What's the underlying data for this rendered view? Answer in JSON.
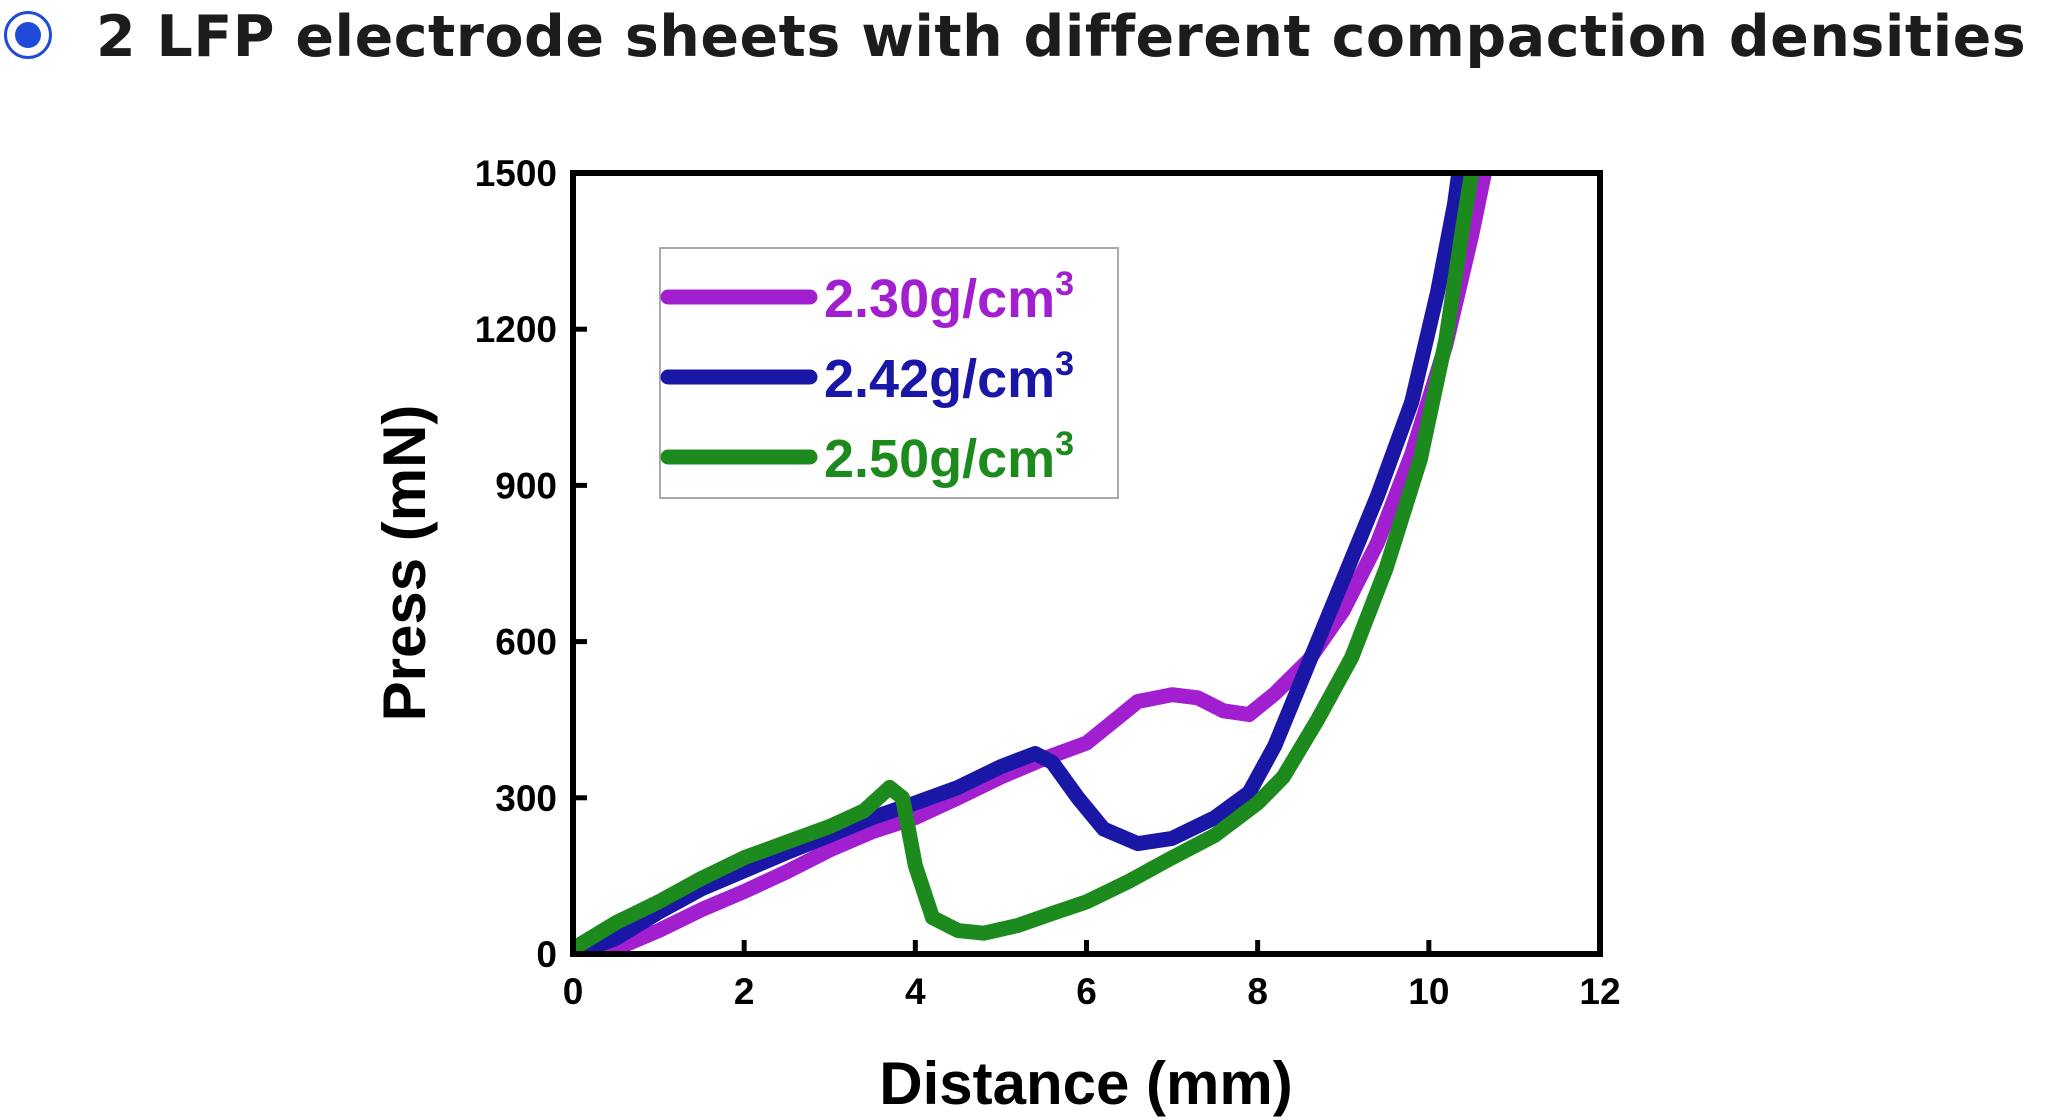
{
  "header": {
    "title": "2 LFP electrode sheets with different compaction densities",
    "bullet_icon": "radio-bullet-icon",
    "accent_color": "#1f4bd8"
  },
  "chart_data": {
    "type": "line",
    "xlabel": "Distance (mm)",
    "ylabel": "Press (mN)",
    "xlim": [
      0,
      12
    ],
    "ylim": [
      0,
      1500
    ],
    "xticks": [
      "0",
      "2",
      "4",
      "6",
      "8",
      "10",
      "12"
    ],
    "yticks": [
      "0",
      "300",
      "600",
      "900",
      "1200",
      "1500"
    ],
    "grid": false,
    "legend_position": "top-left",
    "series": [
      {
        "name": "2.30g/cm",
        "name_superscript": "3",
        "color": "#a21fd0",
        "points": [
          [
            0.0,
            0
          ],
          [
            0.5,
            10
          ],
          [
            1.0,
            45
          ],
          [
            1.5,
            85
          ],
          [
            2.0,
            120
          ],
          [
            2.5,
            158
          ],
          [
            3.0,
            200
          ],
          [
            3.5,
            235
          ],
          [
            4.0,
            262
          ],
          [
            4.5,
            300
          ],
          [
            5.0,
            340
          ],
          [
            5.5,
            375
          ],
          [
            6.0,
            405
          ],
          [
            6.3,
            445
          ],
          [
            6.6,
            485
          ],
          [
            7.0,
            498
          ],
          [
            7.3,
            492
          ],
          [
            7.6,
            467
          ],
          [
            7.9,
            460
          ],
          [
            8.2,
            500
          ],
          [
            8.6,
            565
          ],
          [
            9.0,
            660
          ],
          [
            9.4,
            790
          ],
          [
            9.8,
            960
          ],
          [
            10.2,
            1170
          ],
          [
            10.5,
            1380
          ],
          [
            10.65,
            1500
          ]
        ]
      },
      {
        "name": "2.42g/cm",
        "name_superscript": "3",
        "color": "#1a16a6",
        "points": [
          [
            0.0,
            0
          ],
          [
            0.5,
            30
          ],
          [
            1.0,
            80
          ],
          [
            1.5,
            125
          ],
          [
            2.0,
            160
          ],
          [
            2.5,
            195
          ],
          [
            3.0,
            228
          ],
          [
            3.5,
            262
          ],
          [
            4.0,
            290
          ],
          [
            4.5,
            320
          ],
          [
            5.0,
            360
          ],
          [
            5.4,
            385
          ],
          [
            5.6,
            368
          ],
          [
            5.9,
            300
          ],
          [
            6.2,
            240
          ],
          [
            6.6,
            212
          ],
          [
            7.0,
            222
          ],
          [
            7.5,
            262
          ],
          [
            7.9,
            310
          ],
          [
            8.2,
            400
          ],
          [
            8.6,
            560
          ],
          [
            9.0,
            720
          ],
          [
            9.4,
            880
          ],
          [
            9.8,
            1060
          ],
          [
            10.1,
            1270
          ],
          [
            10.3,
            1440
          ],
          [
            10.35,
            1500
          ]
        ]
      },
      {
        "name": "2.50g/cm",
        "name_superscript": "3",
        "color": "#1d8a1d",
        "points": [
          [
            0.0,
            10
          ],
          [
            0.5,
            60
          ],
          [
            1.0,
            100
          ],
          [
            1.5,
            145
          ],
          [
            2.0,
            185
          ],
          [
            2.5,
            215
          ],
          [
            3.0,
            245
          ],
          [
            3.4,
            275
          ],
          [
            3.7,
            320
          ],
          [
            3.85,
            300
          ],
          [
            4.0,
            170
          ],
          [
            4.2,
            70
          ],
          [
            4.5,
            45
          ],
          [
            4.8,
            40
          ],
          [
            5.2,
            55
          ],
          [
            5.6,
            78
          ],
          [
            6.0,
            100
          ],
          [
            6.5,
            140
          ],
          [
            7.0,
            185
          ],
          [
            7.5,
            228
          ],
          [
            8.0,
            290
          ],
          [
            8.3,
            340
          ],
          [
            8.7,
            450
          ],
          [
            9.1,
            570
          ],
          [
            9.5,
            740
          ],
          [
            9.9,
            950
          ],
          [
            10.2,
            1180
          ],
          [
            10.4,
            1400
          ],
          [
            10.5,
            1500
          ]
        ]
      }
    ]
  }
}
